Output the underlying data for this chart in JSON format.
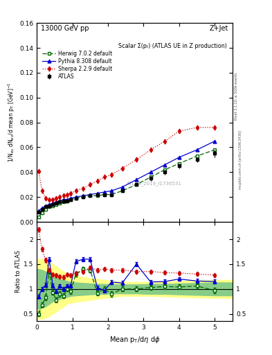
{
  "title_left": "13000 GeV pp",
  "title_right": "Z+Jet",
  "plot_title": "Scalar Σ(pₜ) (ATLAS UE in Z production)",
  "watermark": "ATLAS_2019_I1736531",
  "right_label": "Rivet 3.1.10; ≥ 500k events",
  "right_label2": "mcplots.cern.ch [arXiv:1306.3436]",
  "atlas_x": [
    0.05,
    0.15,
    0.25,
    0.35,
    0.45,
    0.55,
    0.65,
    0.75,
    0.85,
    0.95,
    1.1,
    1.3,
    1.5,
    1.7,
    1.9,
    2.1,
    2.4,
    2.8,
    3.2,
    3.6,
    4.0,
    4.5,
    5.0
  ],
  "atlas_y": [
    0.008,
    0.01,
    0.012,
    0.013,
    0.014,
    0.015,
    0.016,
    0.017,
    0.017,
    0.018,
    0.019,
    0.02,
    0.021,
    0.022,
    0.022,
    0.022,
    0.025,
    0.03,
    0.035,
    0.04,
    0.045,
    0.05,
    0.055
  ],
  "atlas_yerr": [
    0.001,
    0.001,
    0.001,
    0.001,
    0.001,
    0.001,
    0.001,
    0.001,
    0.001,
    0.001,
    0.001,
    0.001,
    0.001,
    0.001,
    0.001,
    0.001,
    0.001,
    0.001,
    0.002,
    0.002,
    0.002,
    0.002,
    0.003
  ],
  "herwig_x": [
    0.05,
    0.15,
    0.25,
    0.35,
    0.45,
    0.55,
    0.65,
    0.75,
    0.85,
    0.95,
    1.1,
    1.3,
    1.5,
    1.7,
    1.9,
    2.1,
    2.4,
    2.8,
    3.2,
    3.6,
    4.0,
    4.5,
    5.0
  ],
  "herwig_y": [
    0.004,
    0.007,
    0.01,
    0.012,
    0.013,
    0.014,
    0.015,
    0.016,
    0.017,
    0.018,
    0.019,
    0.02,
    0.021,
    0.021,
    0.022,
    0.022,
    0.025,
    0.03,
    0.036,
    0.042,
    0.047,
    0.053,
    0.058
  ],
  "pythia_x": [
    0.05,
    0.15,
    0.25,
    0.35,
    0.45,
    0.55,
    0.65,
    0.75,
    0.85,
    0.95,
    1.1,
    1.3,
    1.5,
    1.7,
    1.9,
    2.1,
    2.4,
    2.8,
    3.2,
    3.6,
    4.0,
    4.5,
    5.0
  ],
  "pythia_y": [
    0.009,
    0.011,
    0.013,
    0.014,
    0.015,
    0.016,
    0.017,
    0.018,
    0.018,
    0.019,
    0.02,
    0.021,
    0.022,
    0.023,
    0.024,
    0.025,
    0.028,
    0.034,
    0.04,
    0.046,
    0.052,
    0.058,
    0.065
  ],
  "sherpa_x": [
    0.05,
    0.15,
    0.25,
    0.35,
    0.45,
    0.55,
    0.65,
    0.75,
    0.85,
    0.95,
    1.1,
    1.3,
    1.5,
    1.7,
    1.9,
    2.1,
    2.4,
    2.8,
    3.2,
    3.6,
    4.0,
    4.5,
    5.0
  ],
  "sherpa_y": [
    0.041,
    0.025,
    0.019,
    0.018,
    0.018,
    0.019,
    0.02,
    0.021,
    0.022,
    0.023,
    0.025,
    0.027,
    0.03,
    0.033,
    0.036,
    0.038,
    0.043,
    0.05,
    0.058,
    0.065,
    0.073,
    0.076,
    0.076
  ],
  "ratio_x": [
    0.05,
    0.15,
    0.25,
    0.35,
    0.45,
    0.55,
    0.65,
    0.75,
    0.85,
    0.95,
    1.1,
    1.3,
    1.5,
    1.7,
    1.9,
    2.1,
    2.4,
    2.8,
    3.2,
    3.6,
    4.0,
    4.5,
    5.0
  ],
  "ratio_herwig": [
    0.5,
    0.68,
    0.83,
    1.35,
    0.93,
    0.78,
    0.9,
    0.86,
    1.0,
    0.95,
    1.3,
    1.4,
    1.38,
    0.92,
    1.0,
    0.9,
    1.0,
    1.0,
    1.03,
    1.05,
    1.04,
    1.06,
    0.97
  ],
  "ratio_herwig_err": [
    0.05,
    0.05,
    0.05,
    0.05,
    0.05,
    0.05,
    0.05,
    0.05,
    0.05,
    0.05,
    0.05,
    0.05,
    0.05,
    0.05,
    0.05,
    0.05,
    0.05,
    0.05,
    0.05,
    0.05,
    0.05,
    0.05,
    0.05
  ],
  "ratio_pythia": [
    0.85,
    1.0,
    1.08,
    1.6,
    1.07,
    0.95,
    1.06,
    1.0,
    1.06,
    1.06,
    1.55,
    1.6,
    1.6,
    1.03,
    0.97,
    1.14,
    1.12,
    1.5,
    1.14,
    1.15,
    1.2,
    1.16,
    1.15
  ],
  "ratio_pythia_err": [
    0.04,
    0.04,
    0.04,
    0.04,
    0.04,
    0.04,
    0.04,
    0.04,
    0.04,
    0.04,
    0.04,
    0.04,
    0.04,
    0.04,
    0.04,
    0.04,
    0.04,
    0.04,
    0.04,
    0.04,
    0.04,
    0.04,
    0.04
  ],
  "ratio_sherpa": [
    2.2,
    1.8,
    1.58,
    1.38,
    1.29,
    1.27,
    1.25,
    1.24,
    1.29,
    1.28,
    1.32,
    1.35,
    1.43,
    1.38,
    1.4,
    1.38,
    1.38,
    1.35,
    1.35,
    1.33,
    1.32,
    1.3,
    1.28
  ],
  "ratio_sherpa_err": [
    0.04,
    0.04,
    0.04,
    0.03,
    0.03,
    0.03,
    0.03,
    0.03,
    0.03,
    0.03,
    0.03,
    0.03,
    0.03,
    0.03,
    0.03,
    0.03,
    0.03,
    0.03,
    0.03,
    0.03,
    0.03,
    0.03,
    0.03
  ],
  "band_x": [
    0.0,
    0.05,
    0.15,
    0.25,
    0.35,
    0.45,
    0.55,
    0.65,
    0.75,
    0.85,
    0.95,
    1.1,
    1.3,
    1.5,
    1.7,
    1.9,
    2.1,
    2.4,
    2.8,
    3.2,
    3.6,
    4.0,
    4.5,
    5.0,
    5.5
  ],
  "band_yellow_lo": [
    0.4,
    0.4,
    0.4,
    0.42,
    0.45,
    0.5,
    0.55,
    0.6,
    0.65,
    0.7,
    0.72,
    0.74,
    0.76,
    0.78,
    0.8,
    0.82,
    0.84,
    0.86,
    0.86,
    0.86,
    0.85,
    0.84,
    0.83,
    0.82,
    0.82
  ],
  "band_yellow_hi": [
    1.6,
    1.6,
    1.6,
    1.58,
    1.55,
    1.5,
    1.45,
    1.4,
    1.35,
    1.3,
    1.28,
    1.26,
    1.24,
    1.22,
    1.2,
    1.18,
    1.16,
    1.14,
    1.14,
    1.14,
    1.15,
    1.16,
    1.17,
    1.18,
    1.18
  ],
  "band_green_lo": [
    0.6,
    0.6,
    0.62,
    0.65,
    0.7,
    0.75,
    0.78,
    0.8,
    0.82,
    0.84,
    0.86,
    0.87,
    0.88,
    0.89,
    0.9,
    0.9,
    0.91,
    0.91,
    0.91,
    0.9,
    0.9,
    0.89,
    0.88,
    0.87,
    0.87
  ],
  "band_green_hi": [
    1.4,
    1.4,
    1.38,
    1.35,
    1.3,
    1.25,
    1.22,
    1.2,
    1.18,
    1.16,
    1.14,
    1.13,
    1.12,
    1.11,
    1.1,
    1.1,
    1.09,
    1.09,
    1.09,
    1.1,
    1.1,
    1.11,
    1.12,
    1.13,
    1.13
  ],
  "colors": {
    "atlas": "#000000",
    "herwig": "#006600",
    "pythia": "#0000cc",
    "sherpa": "#cc0000",
    "band_yellow": "#ffff88",
    "band_green": "#88cc88"
  },
  "ylim_main": [
    0.0,
    0.16
  ],
  "ylim_ratio": [
    0.35,
    2.35
  ],
  "xlim": [
    0.0,
    5.5
  ],
  "yticks_ratio": [
    0.5,
    1.0,
    1.5,
    2.0
  ],
  "yticks_ratio_labels": [
    "0.5",
    "1",
    "1.5",
    "2"
  ]
}
